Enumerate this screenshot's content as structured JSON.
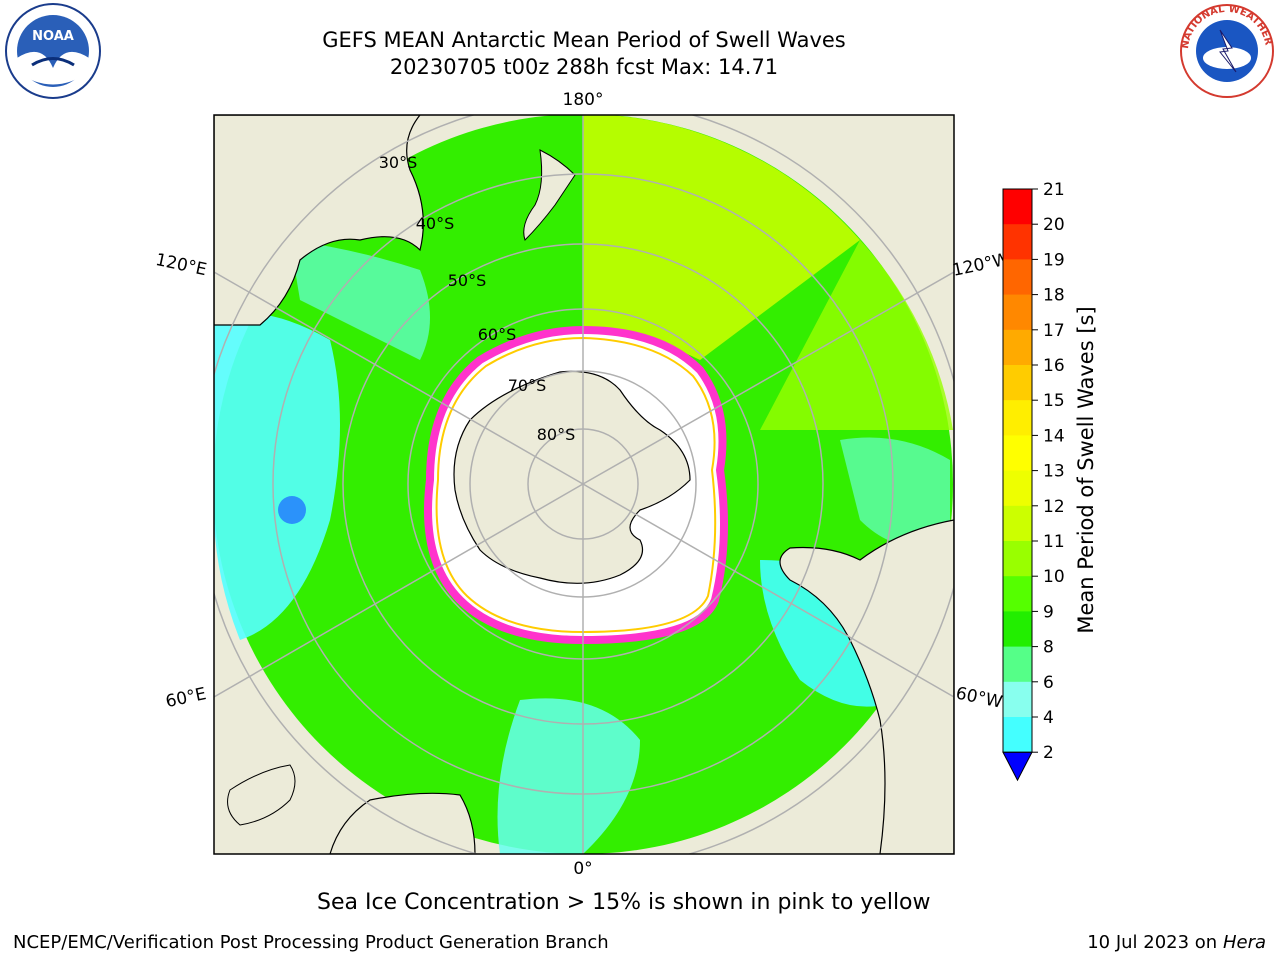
{
  "header": {
    "title_line1": "GEFS MEAN Antarctic Mean Period of Swell Waves",
    "title_line2": "20230705 t00z 288h fcst   Max: 14.71"
  },
  "logos": {
    "left": "noaa-logo",
    "left_text": "NOAA",
    "right": "national-weather-service-logo",
    "right_text": "NATIONAL WEATHER SERVICE"
  },
  "map": {
    "projection": "south-polar-stereographic",
    "longitude_labels": {
      "top": "180°",
      "left_upper": "120°E",
      "right_upper": "120°W",
      "left_lower": "60°E",
      "right_lower": "60°W",
      "bottom": "0°"
    },
    "latitude_labels": [
      "30°S",
      "40°S",
      "50°S",
      "60°S",
      "70°S",
      "80°S"
    ],
    "colors": {
      "land": "#ecebd9",
      "ice": "#ffffff",
      "ocean_dominant": "#33ff00",
      "sea_ice_edge": "#ff33cc",
      "grid": "#b0b0b0"
    }
  },
  "colorbar": {
    "label": "Mean Period of Swell Waves [s]",
    "ticks": [
      "21",
      "20",
      "19",
      "18",
      "17",
      "16",
      "15",
      "14",
      "13",
      "12",
      "11",
      "10",
      "9",
      "8",
      "6",
      "4",
      "2"
    ],
    "colors": [
      "#ff0000",
      "#ff3300",
      "#ff6600",
      "#ff8800",
      "#ffaa00",
      "#ffcc00",
      "#ffee00",
      "#ffff00",
      "#eeff00",
      "#ccff00",
      "#99ff00",
      "#55ff00",
      "#22ee00",
      "#55ff88",
      "#88ffee",
      "#44ffff",
      "#00eeff",
      "#0077ff",
      "#0000ff"
    ]
  },
  "caption": "Sea Ice Concentration > 15% is shown in pink to yellow",
  "footer": {
    "left": "NCEP/EMC/Verification Post Processing Product Generation Branch",
    "right_date": "10 Jul 2023 on",
    "right_host": "Hera"
  }
}
